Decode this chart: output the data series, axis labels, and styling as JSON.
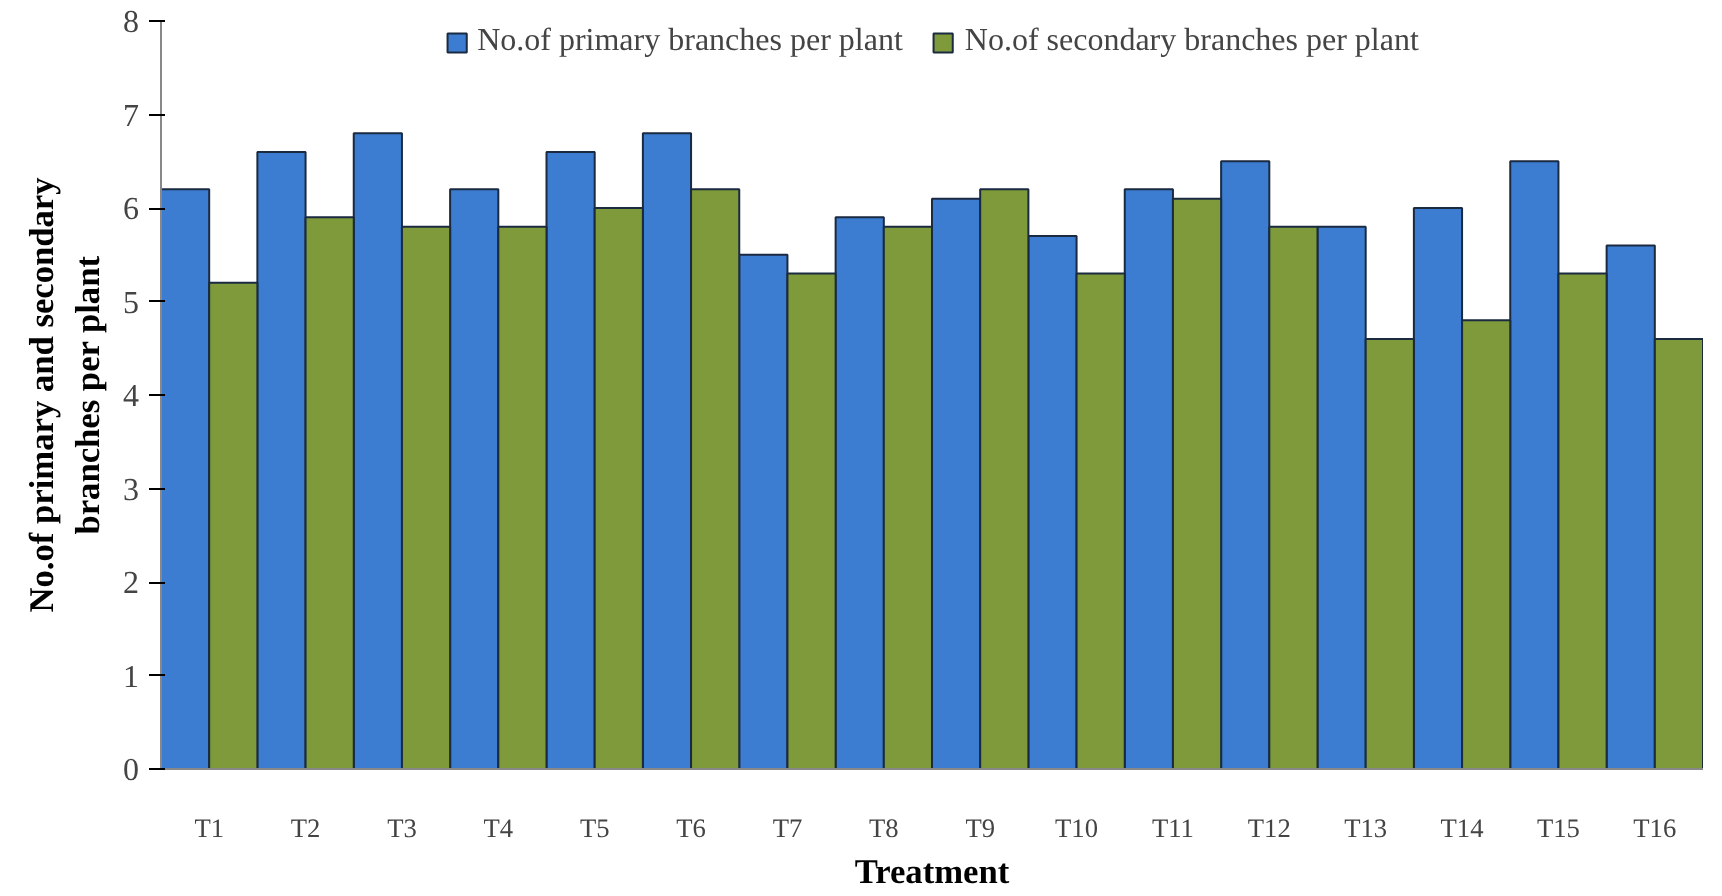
{
  "chart_data": {
    "type": "bar",
    "xlabel": "Treatment",
    "ylabel": "No.of primary and secondary\nbranches per plant",
    "categories": [
      "T1",
      "T2",
      "T3",
      "T4",
      "T5",
      "T6",
      "T7",
      "T8",
      "T9",
      "T10",
      "T11",
      "T12",
      "T13",
      "T14",
      "T15",
      "T16"
    ],
    "series": [
      {
        "name": "No.of primary branches per plant",
        "color": "#3c7dd1",
        "values": [
          6.2,
          6.6,
          6.8,
          6.2,
          6.6,
          6.8,
          5.5,
          5.9,
          6.1,
          5.7,
          6.2,
          6.5,
          5.8,
          6.0,
          6.5,
          5.6
        ]
      },
      {
        "name": "No.of secondary branches per plant",
        "color": "#7f9a3a",
        "values": [
          5.2,
          5.9,
          5.8,
          5.8,
          6.0,
          6.2,
          5.3,
          5.8,
          6.2,
          5.3,
          6.1,
          5.8,
          4.6,
          4.8,
          5.3,
          4.6
        ]
      }
    ],
    "ylim": [
      0,
      8
    ],
    "yticks": [
      0,
      1,
      2,
      3,
      4,
      5,
      6,
      7,
      8
    ],
    "grid": false,
    "legend": "top"
  }
}
